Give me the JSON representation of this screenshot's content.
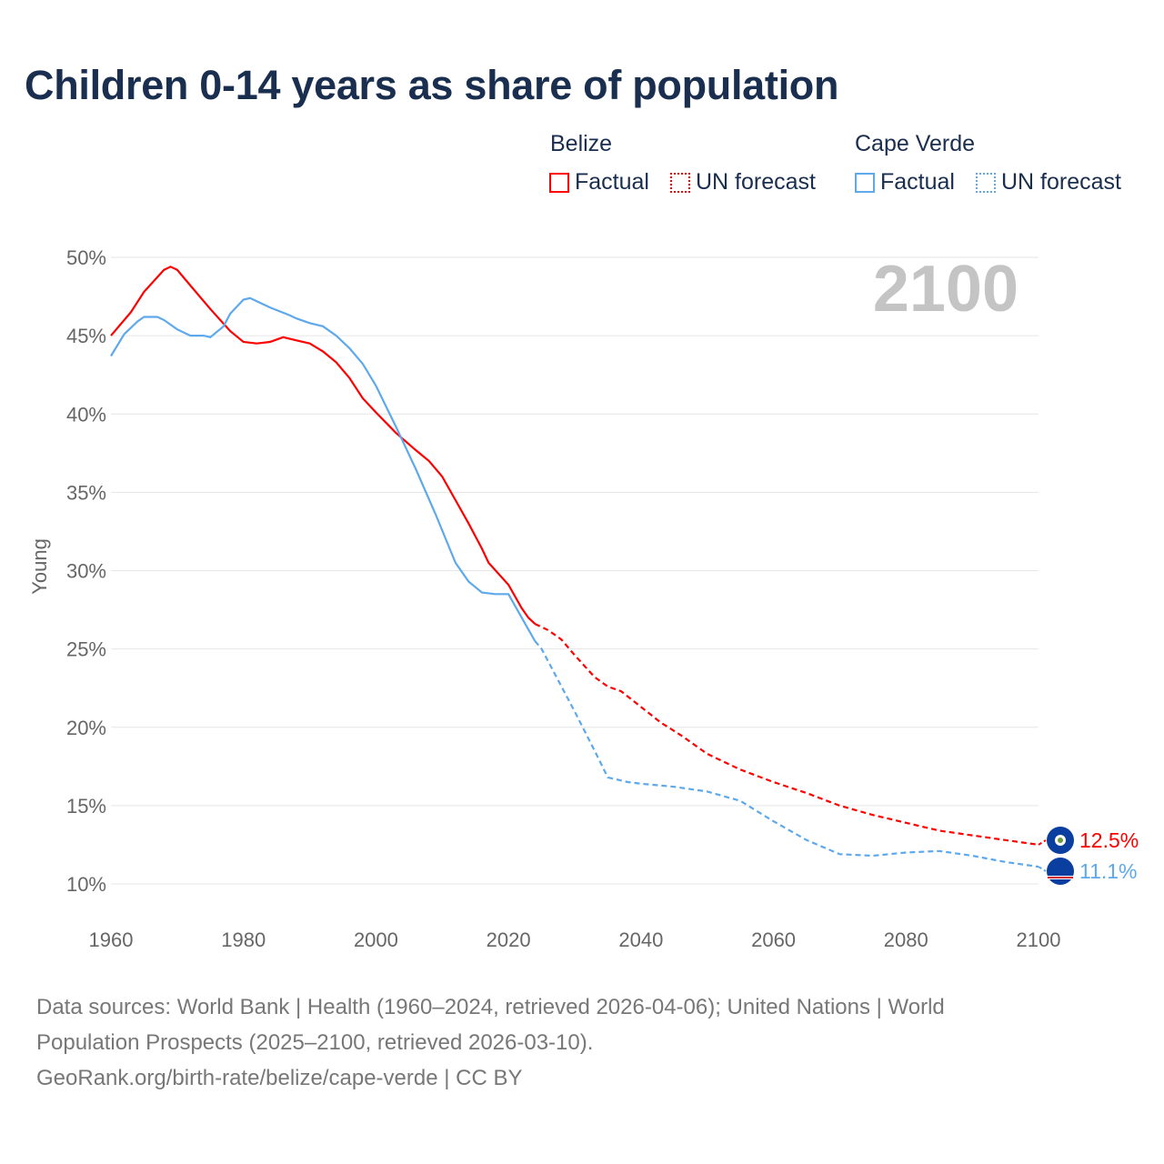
{
  "chart_data": {
    "type": "line",
    "title": "Children 0-14 years as share of population",
    "ylabel": "Young",
    "xlabel": "",
    "xlim": [
      1960,
      2100
    ],
    "ylim": [
      10,
      50
    ],
    "x_ticks": [
      "1960",
      "1980",
      "2000",
      "2020",
      "2040",
      "2060",
      "2080",
      "2100"
    ],
    "y_ticks": [
      "10%",
      "15%",
      "20%",
      "25%",
      "30%",
      "35%",
      "40%",
      "45%",
      "50%"
    ],
    "y_tick_values": [
      10,
      15,
      20,
      25,
      30,
      35,
      40,
      45,
      50
    ],
    "x_tick_values": [
      1960,
      1980,
      2000,
      2020,
      2040,
      2060,
      2080,
      2100
    ],
    "year_watermark": "2100",
    "grid": true,
    "legend_position": "top-right",
    "legend": {
      "groups": [
        {
          "name": "Belize",
          "items": [
            "Factual",
            "UN forecast"
          ],
          "color": "#ff0000"
        },
        {
          "name": "Cape Verde",
          "items": [
            "Factual",
            "UN forecast"
          ],
          "color": "#5ea8ec"
        }
      ]
    },
    "series": [
      {
        "name": "Belize",
        "color": "#ff0000",
        "end_label": "12.5%",
        "factual": {
          "x": [
            1960,
            1963,
            1965,
            1968,
            1969,
            1970,
            1972,
            1975,
            1978,
            1980,
            1982,
            1984,
            1986,
            1988,
            1990,
            1992,
            1994,
            1996,
            1998,
            2000,
            2003,
            2006,
            2008,
            2010,
            2012,
            2014,
            2016,
            2017,
            2020,
            2022,
            2023,
            2024
          ],
          "y": [
            45.0,
            46.5,
            47.8,
            49.2,
            49.4,
            49.2,
            48.2,
            46.7,
            45.3,
            44.6,
            44.5,
            44.6,
            44.9,
            44.7,
            44.5,
            44.0,
            43.3,
            42.3,
            41.0,
            40.1,
            38.8,
            37.7,
            37.0,
            36.0,
            34.5,
            33.0,
            31.4,
            30.5,
            29.1,
            27.6,
            27.0,
            26.6
          ]
        },
        "forecast": {
          "x": [
            2024,
            2026,
            2028,
            2030,
            2033,
            2035,
            2037,
            2040,
            2043,
            2046,
            2050,
            2055,
            2060,
            2065,
            2070,
            2075,
            2080,
            2085,
            2090,
            2095,
            2100
          ],
          "y": [
            26.6,
            26.2,
            25.6,
            24.6,
            23.2,
            22.6,
            22.3,
            21.3,
            20.3,
            19.5,
            18.3,
            17.3,
            16.5,
            15.8,
            15.0,
            14.4,
            13.9,
            13.4,
            13.1,
            12.8,
            12.5
          ]
        }
      },
      {
        "name": "Cape Verde",
        "color": "#5ea8ec",
        "end_label": "11.1%",
        "factual": {
          "x": [
            1960,
            1962,
            1964,
            1965,
            1967,
            1968,
            1970,
            1972,
            1974,
            1975,
            1977,
            1978,
            1980,
            1981,
            1982,
            1984,
            1987,
            1988,
            1990,
            1992,
            1994,
            1996,
            1998,
            2000,
            2003,
            2006,
            2009,
            2012,
            2014,
            2016,
            2018,
            2020,
            2022,
            2024
          ],
          "y": [
            43.7,
            45.1,
            45.9,
            46.2,
            46.2,
            46.0,
            45.4,
            45.0,
            45.0,
            44.9,
            45.6,
            46.4,
            47.3,
            47.4,
            47.2,
            46.8,
            46.3,
            46.1,
            45.8,
            45.6,
            45.0,
            44.2,
            43.2,
            41.8,
            39.2,
            36.5,
            33.6,
            30.5,
            29.3,
            28.6,
            28.5,
            28.5,
            27.0,
            25.5
          ]
        },
        "forecast": {
          "x": [
            2024,
            2025,
            2030,
            2033,
            2035,
            2038,
            2040,
            2045,
            2050,
            2055,
            2060,
            2065,
            2070,
            2075,
            2080,
            2085,
            2090,
            2095,
            2100
          ],
          "y": [
            25.5,
            25.0,
            21.0,
            18.5,
            16.8,
            16.5,
            16.4,
            16.2,
            15.9,
            15.3,
            14.0,
            12.8,
            11.9,
            11.8,
            12.0,
            12.1,
            11.8,
            11.4,
            11.1
          ]
        }
      }
    ]
  },
  "footer": {
    "line1": "Data sources: World Bank | Health (1960–2024, retrieved 2026-04-06); United Nations | World",
    "line2": "Population Prospects (2025–2100, retrieved 2026-03-10).",
    "line3": "GeoRank.org/birth-rate/belize/cape-verde | CC BY"
  }
}
